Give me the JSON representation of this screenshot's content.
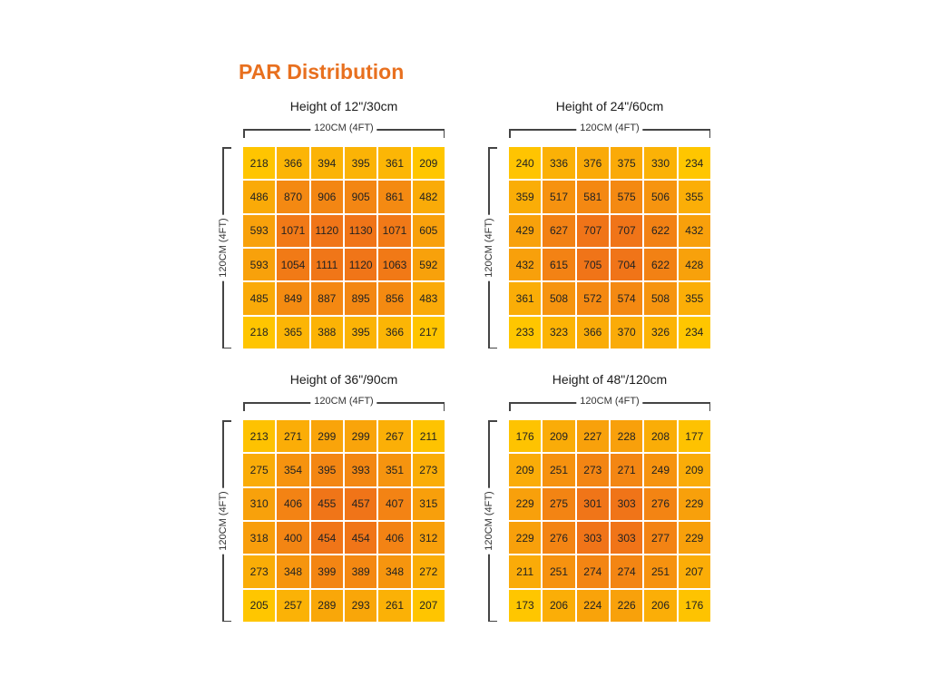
{
  "title": "PAR Distribution",
  "colors": {
    "title": "#e8701f",
    "low": "#ffc600",
    "high": "#f07418"
  },
  "chart_data": [
    {
      "type": "heatmap",
      "title": "Height of 12\"/30cm",
      "xlabel": "120CM (4FT)",
      "ylabel": "120CM (4FT)",
      "values": [
        [
          218,
          366,
          394,
          395,
          361,
          209
        ],
        [
          486,
          870,
          906,
          905,
          861,
          482
        ],
        [
          593,
          1071,
          1120,
          1130,
          1071,
          605
        ],
        [
          593,
          1054,
          1111,
          1120,
          1063,
          592
        ],
        [
          485,
          849,
          887,
          895,
          856,
          483
        ],
        [
          218,
          365,
          388,
          395,
          366,
          217
        ]
      ]
    },
    {
      "type": "heatmap",
      "title": "Height of 24\"/60cm",
      "xlabel": "120CM (4FT)",
      "ylabel": "120CM (4FT)",
      "values": [
        [
          240,
          336,
          376,
          375,
          330,
          234
        ],
        [
          359,
          517,
          581,
          575,
          506,
          355
        ],
        [
          429,
          627,
          707,
          707,
          622,
          432
        ],
        [
          432,
          615,
          705,
          704,
          622,
          428
        ],
        [
          361,
          508,
          572,
          574,
          508,
          355
        ],
        [
          233,
          323,
          366,
          370,
          326,
          234
        ]
      ]
    },
    {
      "type": "heatmap",
      "title": "Height of 36\"/90cm",
      "xlabel": "120CM (4FT)",
      "ylabel": "120CM (4FT)",
      "values": [
        [
          213,
          271,
          299,
          299,
          267,
          211
        ],
        [
          275,
          354,
          395,
          393,
          351,
          273
        ],
        [
          310,
          406,
          455,
          457,
          407,
          315
        ],
        [
          318,
          400,
          454,
          454,
          406,
          312
        ],
        [
          273,
          348,
          399,
          389,
          348,
          272
        ],
        [
          205,
          257,
          289,
          293,
          261,
          207
        ]
      ]
    },
    {
      "type": "heatmap",
      "title": "Height of 48\"/120cm",
      "xlabel": "120CM (4FT)",
      "ylabel": "120CM (4FT)",
      "values": [
        [
          176,
          209,
          227,
          228,
          208,
          177
        ],
        [
          209,
          251,
          273,
          271,
          249,
          209
        ],
        [
          229,
          275,
          301,
          303,
          276,
          229
        ],
        [
          229,
          276,
          303,
          303,
          277,
          229
        ],
        [
          211,
          251,
          274,
          274,
          251,
          207
        ],
        [
          173,
          206,
          224,
          226,
          206,
          176
        ]
      ]
    }
  ]
}
